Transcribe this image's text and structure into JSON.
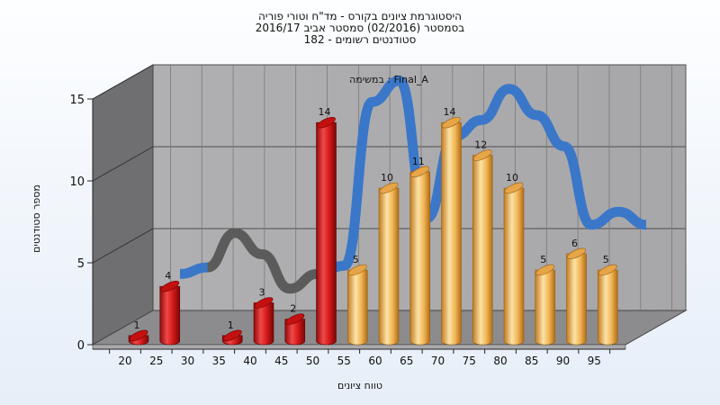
{
  "chart_data": {
    "type": "bar",
    "title_lines": [
      "היסטוגרמת ציונים בקורס - מד\"ח וטורי פוריה",
      "בסמסטר  (02/2016)  סמסטר אביב 2016/17",
      "סטודנטים רשומים - 182"
    ],
    "xlabel": "טווח ציונים",
    "ylabel": "מספר סטודנטים",
    "annotation": "במשימה : Final_A",
    "categories": [
      "20",
      "25",
      "30",
      "35",
      "40",
      "45",
      "50",
      "55",
      "60",
      "65",
      "70",
      "75",
      "80",
      "85",
      "90",
      "95"
    ],
    "values": [
      1,
      4,
      null,
      1,
      3,
      2,
      14,
      5,
      10,
      11,
      14,
      12,
      10,
      5,
      6,
      5
    ],
    "bar_colors": [
      "#d91e1e",
      "#d91e1e",
      null,
      "#d91e1e",
      "#d91e1e",
      "#d91e1e",
      "#d91e1e",
      "#e8a33c",
      "#e8a33c",
      "#e8a33c",
      "#e8a33c",
      "#e8a33c",
      "#e8a33c",
      "#e8a33c",
      "#e8a33c",
      "#e8a33c"
    ],
    "curve": [
      3,
      3.4,
      5.5,
      4.2,
      2.1,
      3,
      3.5,
      13.5,
      14.8,
      6.4,
      11.4,
      12.4,
      14.3,
      12.7,
      10.8,
      6,
      6.8,
      6
    ],
    "ylim": [
      0,
      15
    ],
    "yticks": [
      0,
      5,
      10,
      15
    ],
    "grid": true,
    "colors": {
      "wall": "#a9a9ab",
      "left_wall": "#6f6f72",
      "floor": "#8c8c8e",
      "curve_back": "#5b5b5b",
      "curve_front": "#3a77c9"
    }
  }
}
